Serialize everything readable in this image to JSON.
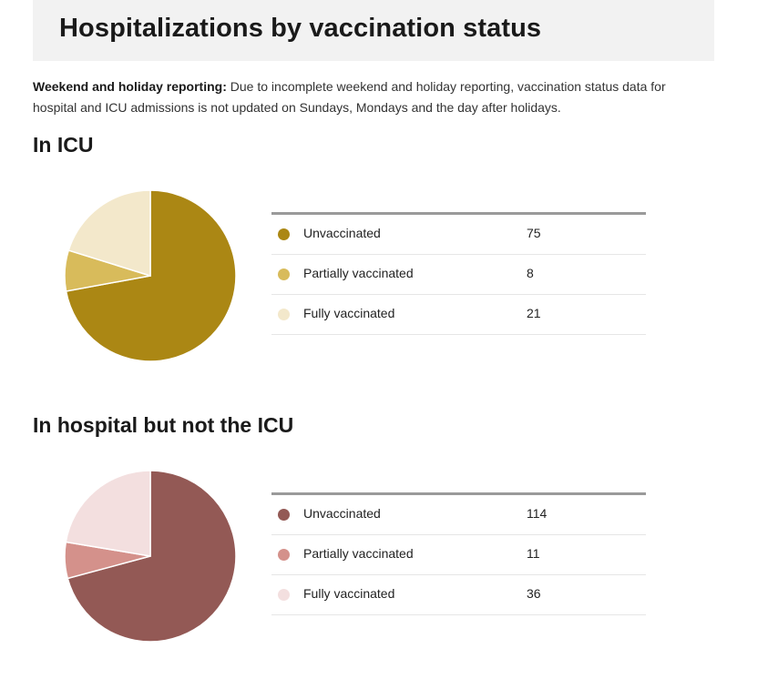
{
  "page": {
    "title": "Hospitalizations by vaccination status",
    "note_bold": "Weekend and holiday reporting:",
    "note_text": " Due to incomplete weekend and holiday reporting, vaccination status data for hospital and ICU admissions is not updated on Sundays, Mondays and the day after holidays."
  },
  "chart_data": [
    {
      "type": "pie",
      "title": "In ICU",
      "categories": [
        "Unvaccinated",
        "Partially vaccinated",
        "Fully vaccinated"
      ],
      "values": [
        75,
        8,
        21
      ],
      "colors": [
        "#ab8714",
        "#d8bb5b",
        "#f3e8cb"
      ],
      "legend": "right"
    },
    {
      "type": "pie",
      "title": "In hospital but not the ICU",
      "categories": [
        "Unvaccinated",
        "Partially vaccinated",
        "Fully vaccinated"
      ],
      "values": [
        114,
        11,
        36
      ],
      "colors": [
        "#935955",
        "#d4918b",
        "#f3dfdf"
      ],
      "legend": "right"
    }
  ]
}
